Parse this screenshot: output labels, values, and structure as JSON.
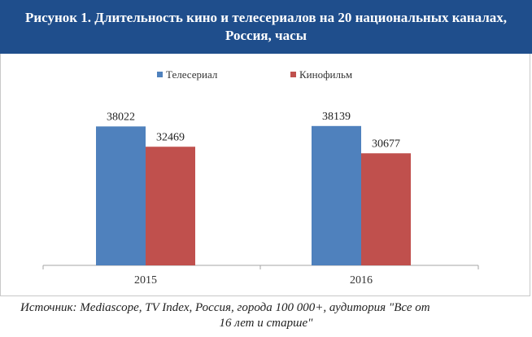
{
  "header": {
    "title": "Рисунок 1. Длительность кино и телесериалов на 20 национальных каналах, Россия, часы"
  },
  "chart_data": {
    "type": "bar",
    "categories": [
      "2015",
      "2016"
    ],
    "series": [
      {
        "name": "Телесериал",
        "values": [
          38022,
          38139
        ],
        "color": "#4f81bd"
      },
      {
        "name": "Кинофильм",
        "values": [
          32469,
          30677
        ],
        "color": "#c0504d"
      }
    ],
    "ylim": [
      0,
      45000
    ],
    "grid": false,
    "legend_position": "top-center",
    "data_labels": true
  },
  "source": {
    "line1": "Источник: Mediascope, TV Index, Россия, города 100 000+, аудитория \"Все от",
    "line2": "16 лет и старше\""
  }
}
